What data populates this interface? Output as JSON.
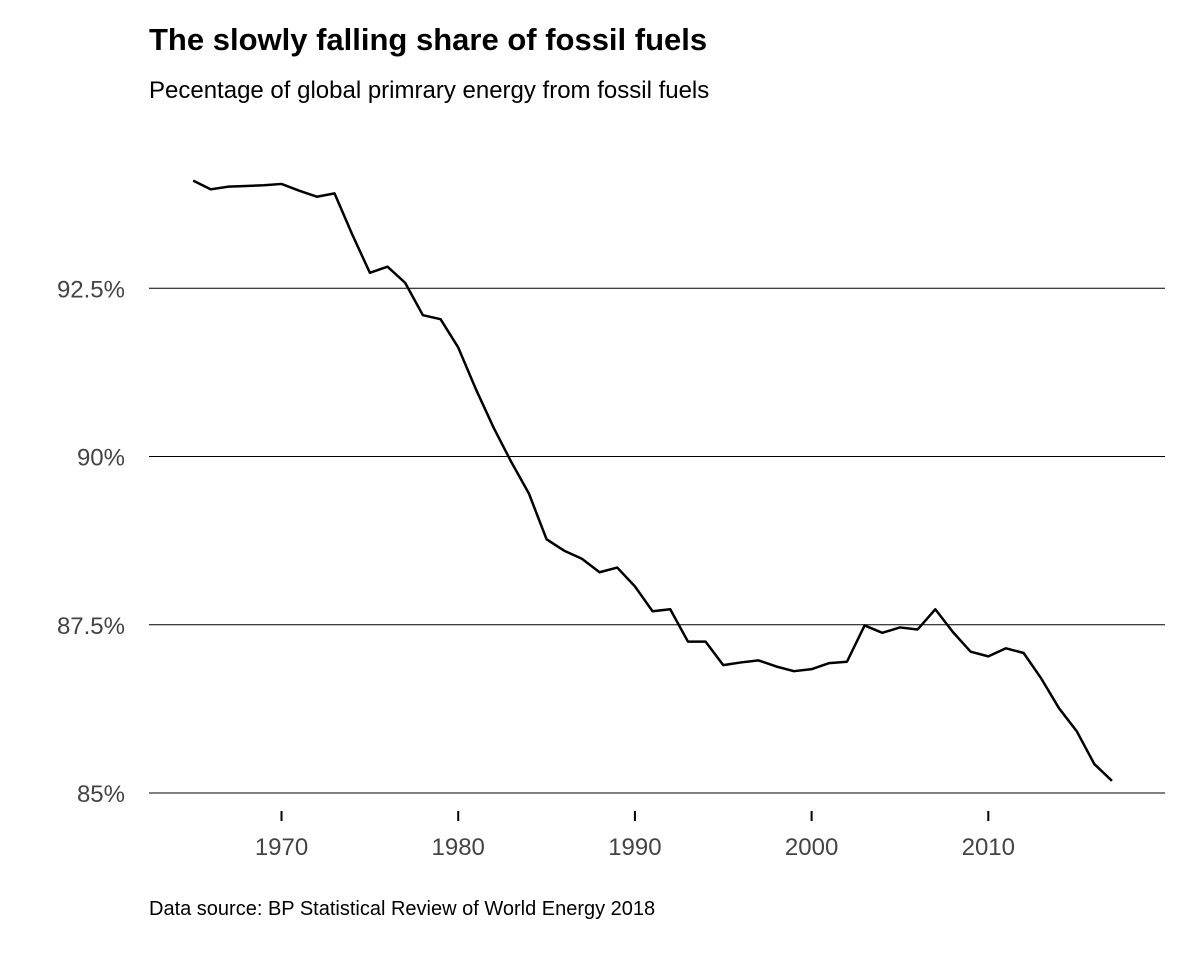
{
  "chart_data": {
    "type": "line",
    "title": "The slowly falling share of fossil fuels",
    "subtitle": "Pecentage of global primrary energy from fossil fuels",
    "source": "Data source: BP Statistical Review of World Energy 2018",
    "xlabel": "",
    "ylabel": "",
    "xlim": [
      1962.5,
      2020
    ],
    "ylim": [
      85,
      95
    ],
    "grid": "horizontal",
    "y_ticks": [
      {
        "value": 85,
        "label": "85%"
      },
      {
        "value": 87.5,
        "label": "87.5%"
      },
      {
        "value": 90,
        "label": "90%"
      },
      {
        "value": 92.5,
        "label": "92.5%"
      }
    ],
    "x_ticks": [
      {
        "value": 1970,
        "label": "1970"
      },
      {
        "value": 1980,
        "label": "1980"
      },
      {
        "value": 1990,
        "label": "1990"
      },
      {
        "value": 2000,
        "label": "2000"
      },
      {
        "value": 2010,
        "label": "2010"
      }
    ],
    "series": [
      {
        "x": [
          1965,
          1966,
          1967,
          1968,
          1969,
          1970,
          1971,
          1972,
          1973,
          1974,
          1975,
          1976,
          1977,
          1978,
          1979,
          1980,
          1981,
          1982,
          1983,
          1984,
          1985,
          1986,
          1987,
          1988,
          1989,
          1990,
          1991,
          1992,
          1993,
          1994,
          1995,
          1996,
          1997,
          1998,
          1999,
          2000,
          2001,
          2002,
          2003,
          2004,
          2005,
          2006,
          2007,
          2008,
          2009,
          2010,
          2011,
          2012,
          2013,
          2014,
          2015,
          2016,
          2017
        ],
        "values": [
          94.1,
          93.97,
          94.01,
          94.02,
          94.03,
          94.05,
          93.95,
          93.86,
          93.91,
          93.3,
          92.73,
          92.82,
          92.58,
          92.1,
          92.04,
          91.62,
          91.0,
          90.43,
          89.92,
          89.45,
          88.77,
          88.6,
          88.48,
          88.28,
          88.35,
          88.07,
          87.7,
          87.73,
          87.25,
          87.25,
          86.9,
          86.94,
          86.97,
          86.88,
          86.81,
          86.84,
          86.93,
          86.95,
          87.49,
          87.38,
          87.46,
          87.43,
          87.73,
          87.39,
          87.1,
          87.03,
          87.15,
          87.08,
          86.7,
          86.26,
          85.92,
          85.43,
          85.18
        ]
      }
    ]
  }
}
